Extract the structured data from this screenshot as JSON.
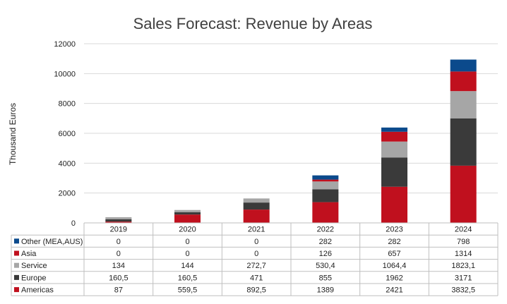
{
  "chart_data": {
    "type": "bar",
    "stacked": true,
    "title": "Sales Forecast: Revenue by Areas",
    "ylabel": "Thousand Euros",
    "ylim": [
      0,
      12000
    ],
    "yticks": [
      "0",
      "2000",
      "4000",
      "6000",
      "8000",
      "10000",
      "12000"
    ],
    "categories": [
      "2019",
      "2020",
      "2021",
      "2022",
      "2023",
      "2024"
    ],
    "series": [
      {
        "name": "Other (MEA,AUS)",
        "color": "#0b4a8c",
        "values": [
          0,
          0,
          0,
          282,
          282,
          798
        ],
        "labels": [
          "0",
          "0",
          "0",
          "282",
          "282",
          "798"
        ]
      },
      {
        "name": "Asia",
        "color": "#c0101e",
        "values": [
          0,
          0,
          0,
          126,
          657,
          1314
        ],
        "labels": [
          "0",
          "0",
          "0",
          "126",
          "657",
          "1314"
        ]
      },
      {
        "name": "Service",
        "color": "#a6a6a6",
        "values": [
          134,
          144,
          272.7,
          530.4,
          1064.4,
          1823.1
        ],
        "labels": [
          "134",
          "144",
          "272,7",
          "530,4",
          "1064,4",
          "1823,1"
        ]
      },
      {
        "name": "Europe",
        "color": "#3a3a3a",
        "values": [
          160.5,
          160.5,
          471,
          855,
          1962,
          3171
        ],
        "labels": [
          "160,5",
          "160,5",
          "471",
          "855",
          "1962",
          "3171"
        ]
      },
      {
        "name": "Americas",
        "color": "#c0101e",
        "values": [
          87,
          559.5,
          892.5,
          1389,
          2421,
          3832.5
        ],
        "labels": [
          "87",
          "559,5",
          "892,5",
          "1389",
          "2421",
          "3832,5"
        ]
      }
    ],
    "stack_order": [
      "Americas",
      "Europe",
      "Service",
      "Asia",
      "Other (MEA,AUS)"
    ],
    "legend": "data-table",
    "grid": true
  }
}
